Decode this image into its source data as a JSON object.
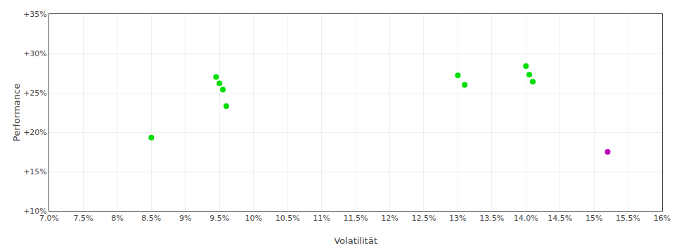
{
  "chart_data": {
    "type": "scatter",
    "xlabel": "Volatilität",
    "ylabel": "Performance",
    "xlim": [
      0.07,
      0.16
    ],
    "ylim": [
      0.1,
      0.35
    ],
    "xticks": [
      {
        "value": 0.07,
        "label": "7.0%"
      },
      {
        "value": 0.075,
        "label": "7.5%"
      },
      {
        "value": 0.08,
        "label": "8%"
      },
      {
        "value": 0.085,
        "label": "8.5%"
      },
      {
        "value": 0.09,
        "label": "9%"
      },
      {
        "value": 0.095,
        "label": "9.5%"
      },
      {
        "value": 0.1,
        "label": "10%"
      },
      {
        "value": 0.105,
        "label": "10.5%"
      },
      {
        "value": 0.11,
        "label": "11%"
      },
      {
        "value": 0.115,
        "label": "11.5%"
      },
      {
        "value": 0.12,
        "label": "12%"
      },
      {
        "value": 0.125,
        "label": "12.5%"
      },
      {
        "value": 0.13,
        "label": "13%"
      },
      {
        "value": 0.135,
        "label": "13.5%"
      },
      {
        "value": 0.14,
        "label": "14.0%"
      },
      {
        "value": 0.145,
        "label": "14.5%"
      },
      {
        "value": 0.15,
        "label": "15%"
      },
      {
        "value": 0.155,
        "label": "15.5%"
      },
      {
        "value": 0.16,
        "label": "16%"
      }
    ],
    "yticks": [
      {
        "value": 0.1,
        "label": "+10%"
      },
      {
        "value": 0.15,
        "label": "+15%"
      },
      {
        "value": 0.2,
        "label": "+20%"
      },
      {
        "value": 0.25,
        "label": "+25%"
      },
      {
        "value": 0.3,
        "label": "+30%"
      },
      {
        "value": 0.35,
        "label": "+35%"
      }
    ],
    "grid": true,
    "series": [
      {
        "color": "#00dd00",
        "x": [
          0.085,
          0.0945,
          0.095,
          0.0955,
          0.096,
          0.13,
          0.131,
          0.14,
          0.1405,
          0.141
        ],
        "values": [
          0.193,
          0.27,
          0.262,
          0.254,
          0.233,
          0.272,
          0.26,
          0.284,
          0.273,
          0.264
        ]
      },
      {
        "color": "#bb00bb",
        "x": [
          0.152
        ],
        "values": [
          0.175
        ]
      }
    ]
  }
}
